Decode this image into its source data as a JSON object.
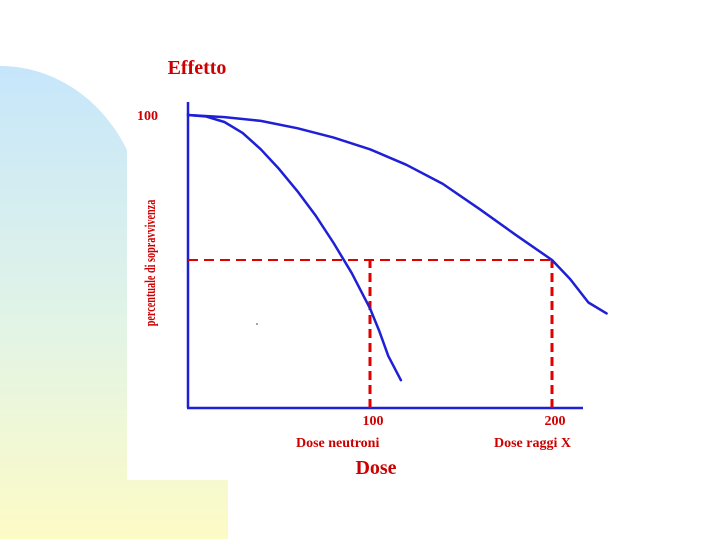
{
  "chart_data": {
    "type": "line",
    "title": "Effetto",
    "xlabel": "Dose",
    "ylabel": "percentuale  di sopravvivenza",
    "xlim": [
      0,
      230
    ],
    "ylim": [
      0,
      105
    ],
    "grid": false,
    "legend": "none",
    "y_ticks": [
      {
        "value": 100,
        "label": "100"
      }
    ],
    "x_ticks": [
      {
        "value": 100,
        "label": "100",
        "caption": "Dose neutroni"
      },
      {
        "value": 200,
        "label": "200",
        "caption": "Dose raggi X"
      }
    ],
    "series": [
      {
        "color": "#1f1fd6",
        "x": [
          0,
          10,
          20,
          30,
          40,
          50,
          60,
          70,
          80,
          90,
          100,
          105,
          110,
          117
        ],
        "y": [
          100,
          99.5,
          97.6,
          93.9,
          88.3,
          81.6,
          74.1,
          65.8,
          56.3,
          46.0,
          34.0,
          26.4,
          17.8,
          9.5
        ]
      },
      {
        "color": "#1f1fd6",
        "x": [
          0,
          20,
          40,
          60,
          80,
          100,
          120,
          140,
          160,
          180,
          200,
          210,
          220,
          230
        ],
        "y": [
          100,
          99.3,
          98.0,
          95.5,
          92.3,
          88.3,
          83.0,
          76.5,
          68.0,
          59.1,
          50.5,
          44.0,
          36.0,
          32.3
        ]
      }
    ],
    "reference_lines": [
      {
        "kind": "horizontal",
        "y": 50.5,
        "x_from": 0,
        "x_to": 200,
        "color": "#e00000",
        "style": "dashed"
      },
      {
        "kind": "vertical",
        "x": 100,
        "y_from": 0,
        "y_to": 50.5,
        "color": "#e00000",
        "style": "dashed"
      },
      {
        "kind": "vertical",
        "x": 200,
        "y_from": 0,
        "y_to": 50.5,
        "color": "#e00000",
        "style": "dashed"
      }
    ]
  }
}
